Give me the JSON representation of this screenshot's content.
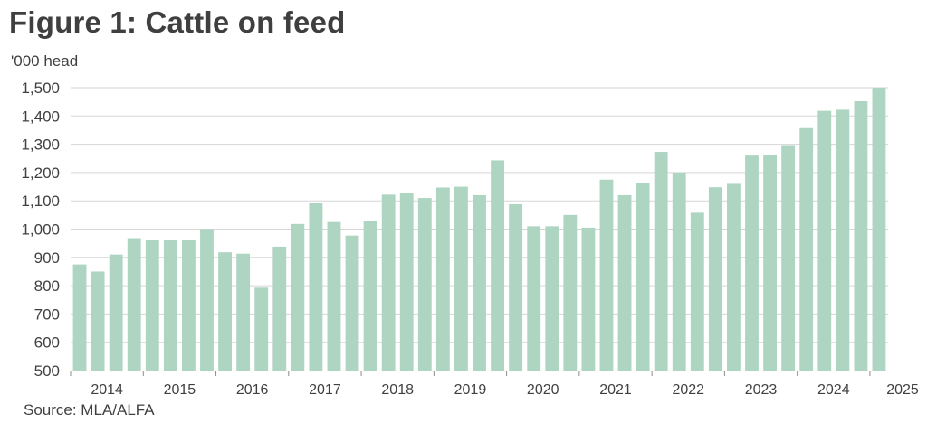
{
  "chart_data": {
    "type": "bar",
    "title": "Figure 1: Cattle on feed",
    "ylabel": "'000 head",
    "source": "Source: MLA/ALFA",
    "ylim": [
      500,
      1500
    ],
    "yticks": [
      500,
      600,
      700,
      800,
      900,
      1000,
      1100,
      1200,
      1300,
      1400,
      1500
    ],
    "ytick_labels": [
      "500",
      "600",
      "700",
      "800",
      "900",
      "1,000",
      "1,100",
      "1,200",
      "1,300",
      "1,400",
      "1,500"
    ],
    "xtick_labels": [
      "2014",
      "2015",
      "2016",
      "2017",
      "2018",
      "2019",
      "2020",
      "2021",
      "2022",
      "2023",
      "2024",
      "2025"
    ],
    "grid": "horizontal",
    "color": "#aed4c2",
    "categories": [
      "2014 Q1",
      "2014 Q2",
      "2014 Q3",
      "2014 Q4",
      "2015 Q1",
      "2015 Q2",
      "2015 Q3",
      "2015 Q4",
      "2016 Q1",
      "2016 Q2",
      "2016 Q3",
      "2016 Q4",
      "2017 Q1",
      "2017 Q2",
      "2017 Q3",
      "2017 Q4",
      "2018 Q1",
      "2018 Q2",
      "2018 Q3",
      "2018 Q4",
      "2019 Q1",
      "2019 Q2",
      "2019 Q3",
      "2019 Q4",
      "2020 Q1",
      "2020 Q2",
      "2020 Q3",
      "2020 Q4",
      "2021 Q1",
      "2021 Q2",
      "2021 Q3",
      "2021 Q4",
      "2022 Q1",
      "2022 Q2",
      "2022 Q3",
      "2022 Q4",
      "2023 Q1",
      "2023 Q2",
      "2023 Q3",
      "2023 Q4",
      "2024 Q1",
      "2024 Q2",
      "2024 Q3",
      "2024 Q4",
      "2025 Q1"
    ],
    "values": [
      875,
      850,
      910,
      968,
      962,
      960,
      963,
      1000,
      918,
      913,
      793,
      938,
      1018,
      1091,
      1025,
      977,
      1028,
      1122,
      1127,
      1110,
      1147,
      1150,
      1120,
      1243,
      1088,
      1010,
      1010,
      1050,
      1005,
      1175,
      1120,
      1163,
      1273,
      1200,
      1058,
      1148,
      1160,
      1260,
      1262,
      1297,
      1357,
      1418,
      1422,
      1452,
      1500
    ]
  }
}
